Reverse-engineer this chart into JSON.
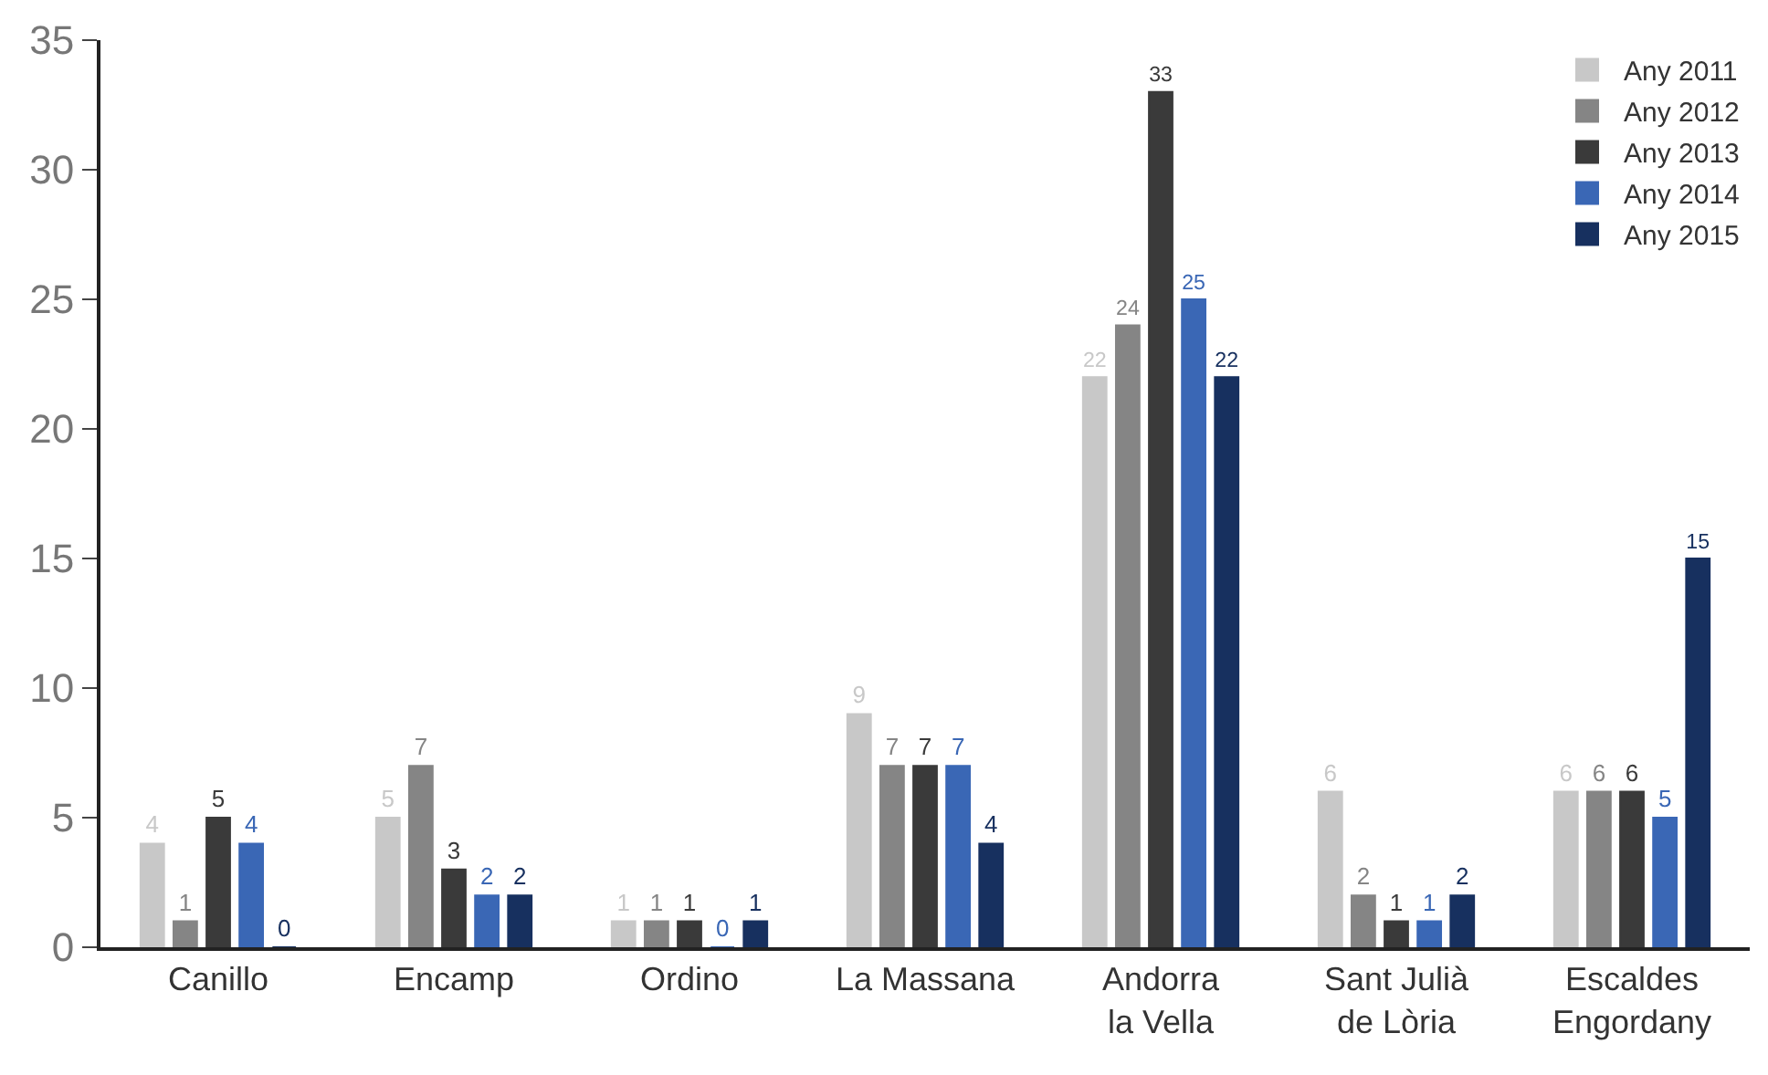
{
  "chart_data": {
    "type": "bar",
    "categories": [
      "Canillo",
      "Encamp",
      "Ordino",
      "La Massana",
      "Andorra\nla Vella",
      "Sant Julià\nde Lòria",
      "Escaldes\nEngordany"
    ],
    "series": [
      {
        "name": "Any 2011",
        "color": "#c8c8c8",
        "values": [
          4,
          5,
          1,
          9,
          22,
          6,
          6
        ]
      },
      {
        "name": "Any 2012",
        "color": "#858585",
        "values": [
          1,
          7,
          1,
          7,
          24,
          2,
          6
        ]
      },
      {
        "name": "Any 2013",
        "color": "#3a3a3a",
        "values": [
          5,
          3,
          1,
          7,
          33,
          1,
          6
        ]
      },
      {
        "name": "Any 2014",
        "color": "#3a67b5",
        "values": [
          4,
          2,
          0,
          7,
          25,
          1,
          5
        ]
      },
      {
        "name": "Any 2015",
        "color": "#17305f",
        "values": [
          0,
          2,
          1,
          4,
          22,
          2,
          15
        ]
      }
    ],
    "ylim": [
      0,
      35
    ],
    "yticks": [
      0,
      5,
      10,
      15,
      20,
      25,
      30,
      35
    ],
    "legend": "top right",
    "data_labels": true
  }
}
